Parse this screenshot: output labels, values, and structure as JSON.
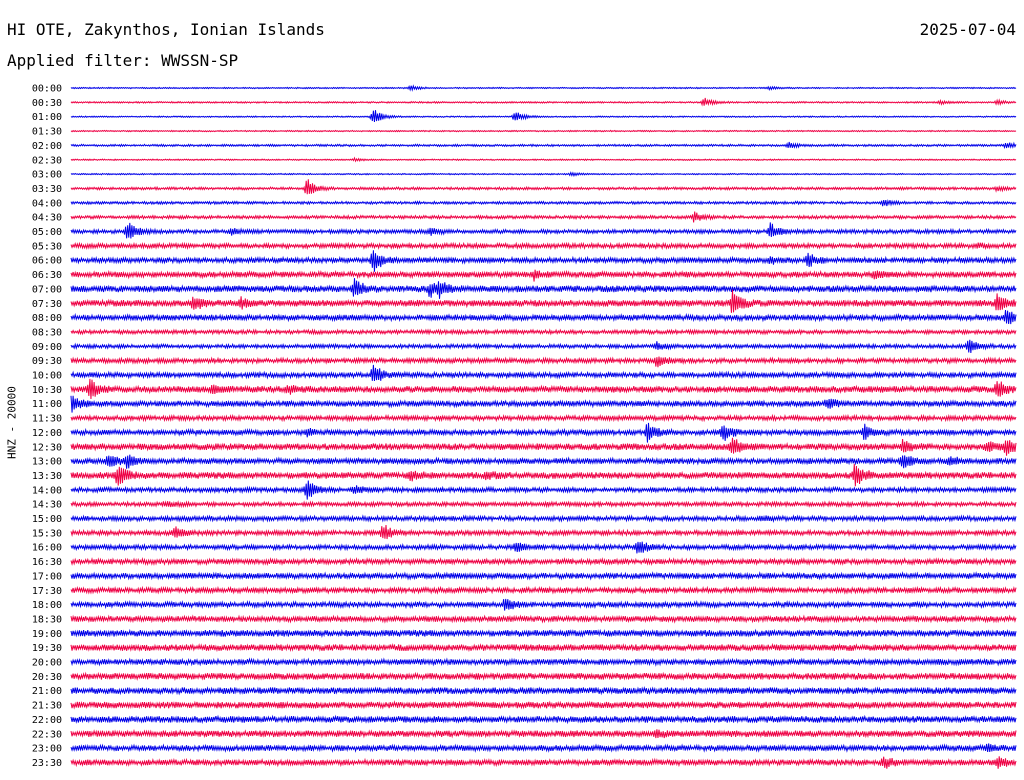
{
  "header": {
    "station": "HI OTE, Zakynthos, Ionian Islands",
    "date": "2025-07-04",
    "filter": "Applied filter: WWSSN-SP"
  },
  "chart_data": {
    "type": "line",
    "ylabel": "HNZ - 20000",
    "colors": {
      "even": "#0000e8",
      "odd": "#ee0044"
    },
    "rows": [
      {
        "label": "00:00",
        "noise": 0.5,
        "events": [
          {
            "t": 0.36,
            "a": 2
          },
          {
            "t": 0.74,
            "a": 1.5
          }
        ]
      },
      {
        "label": "00:30",
        "noise": 0.6,
        "events": [
          {
            "t": 0.67,
            "a": 4
          },
          {
            "t": 0.92,
            "a": 1.5
          },
          {
            "t": 0.98,
            "a": 2
          }
        ]
      },
      {
        "label": "01:00",
        "noise": 0.5,
        "events": [
          {
            "t": 0.32,
            "a": 8
          },
          {
            "t": 0.47,
            "a": 5
          }
        ]
      },
      {
        "label": "01:30",
        "noise": 0.5,
        "events": []
      },
      {
        "label": "02:00",
        "noise": 0.8,
        "events": [
          {
            "t": 0.76,
            "a": 2.5
          },
          {
            "t": 0.99,
            "a": 3
          }
        ]
      },
      {
        "label": "02:30",
        "noise": 0.5,
        "events": [
          {
            "t": 0.3,
            "a": 1.2
          }
        ]
      },
      {
        "label": "03:00",
        "noise": 0.5,
        "events": [
          {
            "t": 0.53,
            "a": 1.5
          }
        ]
      },
      {
        "label": "03:30",
        "noise": 1.0,
        "events": [
          {
            "t": 0.25,
            "a": 9
          },
          {
            "t": 0.98,
            "a": 2
          }
        ]
      },
      {
        "label": "04:00",
        "noise": 1.0,
        "events": [
          {
            "t": 0.86,
            "a": 3
          }
        ]
      },
      {
        "label": "04:30",
        "noise": 1.2,
        "events": [
          {
            "t": 0.66,
            "a": 5
          }
        ]
      },
      {
        "label": "05:00",
        "noise": 1.5,
        "events": [
          {
            "t": 0.06,
            "a": 9
          },
          {
            "t": 0.17,
            "a": 3
          },
          {
            "t": 0.38,
            "a": 3
          },
          {
            "t": 0.74,
            "a": 8
          }
        ]
      },
      {
        "label": "05:30",
        "noise": 1.8,
        "events": [
          {
            "t": 0.96,
            "a": 2
          }
        ]
      },
      {
        "label": "06:00",
        "noise": 2.0,
        "events": [
          {
            "t": 0.32,
            "a": 11
          },
          {
            "t": 0.78,
            "a": 6
          },
          {
            "t": 0.74,
            "a": 3
          }
        ]
      },
      {
        "label": "06:30",
        "noise": 2.2,
        "events": [
          {
            "t": 0.49,
            "a": 4
          },
          {
            "t": 0.85,
            "a": 3
          }
        ]
      },
      {
        "label": "07:00",
        "noise": 2.5,
        "events": [
          {
            "t": 0.3,
            "a": 8
          },
          {
            "t": 0.38,
            "a": 6
          },
          {
            "t": 0.39,
            "a": 6
          }
        ]
      },
      {
        "label": "07:30",
        "noise": 2.5,
        "events": [
          {
            "t": 0.13,
            "a": 6
          },
          {
            "t": 0.18,
            "a": 5
          },
          {
            "t": 0.7,
            "a": 11
          },
          {
            "t": 0.98,
            "a": 8
          }
        ]
      },
      {
        "label": "08:00",
        "noise": 2.2,
        "events": [
          {
            "t": 0.99,
            "a": 7
          }
        ]
      },
      {
        "label": "08:30",
        "noise": 1.5,
        "events": []
      },
      {
        "label": "09:00",
        "noise": 1.5,
        "events": [
          {
            "t": 0.62,
            "a": 3
          },
          {
            "t": 0.95,
            "a": 6
          }
        ]
      },
      {
        "label": "09:30",
        "noise": 1.8,
        "events": [
          {
            "t": 0.62,
            "a": 5
          }
        ]
      },
      {
        "label": "10:00",
        "noise": 2.0,
        "events": [
          {
            "t": 0.32,
            "a": 9
          }
        ]
      },
      {
        "label": "10:30",
        "noise": 2.5,
        "events": [
          {
            "t": 0.02,
            "a": 9
          },
          {
            "t": 0.15,
            "a": 4
          },
          {
            "t": 0.23,
            "a": 3
          },
          {
            "t": 0.98,
            "a": 8
          }
        ]
      },
      {
        "label": "11:00",
        "noise": 2.2,
        "events": [
          {
            "t": 0.0,
            "a": 7
          },
          {
            "t": 0.8,
            "a": 5
          }
        ]
      },
      {
        "label": "11:30",
        "noise": 1.8,
        "events": []
      },
      {
        "label": "12:00",
        "noise": 2.0,
        "events": [
          {
            "t": 0.25,
            "a": 3
          },
          {
            "t": 0.61,
            "a": 8
          },
          {
            "t": 0.69,
            "a": 8
          },
          {
            "t": 0.84,
            "a": 8
          }
        ]
      },
      {
        "label": "12:30",
        "noise": 2.5,
        "events": [
          {
            "t": 0.7,
            "a": 8
          },
          {
            "t": 0.88,
            "a": 5
          },
          {
            "t": 0.97,
            "a": 4
          },
          {
            "t": 0.99,
            "a": 6
          }
        ]
      },
      {
        "label": "13:00",
        "noise": 2.2,
        "events": [
          {
            "t": 0.04,
            "a": 6
          },
          {
            "t": 0.06,
            "a": 6
          },
          {
            "t": 0.88,
            "a": 7
          },
          {
            "t": 0.93,
            "a": 4
          }
        ]
      },
      {
        "label": "13:30",
        "noise": 2.5,
        "events": [
          {
            "t": 0.05,
            "a": 10
          },
          {
            "t": 0.36,
            "a": 4
          },
          {
            "t": 0.44,
            "a": 3
          },
          {
            "t": 0.83,
            "a": 11
          }
        ]
      },
      {
        "label": "14:00",
        "noise": 1.8,
        "events": [
          {
            "t": 0.25,
            "a": 10
          },
          {
            "t": 0.3,
            "a": 4
          }
        ]
      },
      {
        "label": "14:30",
        "noise": 1.6,
        "events": [
          {
            "t": 0.1,
            "a": 2
          }
        ]
      },
      {
        "label": "15:00",
        "noise": 1.8,
        "events": [
          {
            "t": 0.73,
            "a": 2
          }
        ]
      },
      {
        "label": "15:30",
        "noise": 1.8,
        "events": [
          {
            "t": 0.11,
            "a": 5
          },
          {
            "t": 0.33,
            "a": 8
          }
        ]
      },
      {
        "label": "16:00",
        "noise": 1.8,
        "events": [
          {
            "t": 0.47,
            "a": 5
          },
          {
            "t": 0.6,
            "a": 7
          }
        ]
      },
      {
        "label": "16:30",
        "noise": 2.0,
        "events": []
      },
      {
        "label": "17:00",
        "noise": 2.2,
        "events": []
      },
      {
        "label": "17:30",
        "noise": 2.0,
        "events": []
      },
      {
        "label": "18:00",
        "noise": 2.0,
        "events": [
          {
            "t": 0.46,
            "a": 6
          }
        ]
      },
      {
        "label": "18:30",
        "noise": 2.2,
        "events": []
      },
      {
        "label": "19:00",
        "noise": 2.5,
        "events": []
      },
      {
        "label": "19:30",
        "noise": 2.5,
        "events": []
      },
      {
        "label": "20:00",
        "noise": 2.2,
        "events": []
      },
      {
        "label": "20:30",
        "noise": 2.5,
        "events": []
      },
      {
        "label": "21:00",
        "noise": 2.5,
        "events": []
      },
      {
        "label": "21:30",
        "noise": 2.5,
        "events": []
      },
      {
        "label": "22:00",
        "noise": 2.5,
        "events": []
      },
      {
        "label": "22:30",
        "noise": 2.5,
        "events": [
          {
            "t": 0.62,
            "a": 3
          }
        ]
      },
      {
        "label": "23:00",
        "noise": 2.2,
        "events": [
          {
            "t": 0.97,
            "a": 3
          }
        ]
      },
      {
        "label": "23:30",
        "noise": 2.2,
        "events": [
          {
            "t": 0.86,
            "a": 5
          },
          {
            "t": 0.98,
            "a": 5
          }
        ]
      }
    ]
  }
}
